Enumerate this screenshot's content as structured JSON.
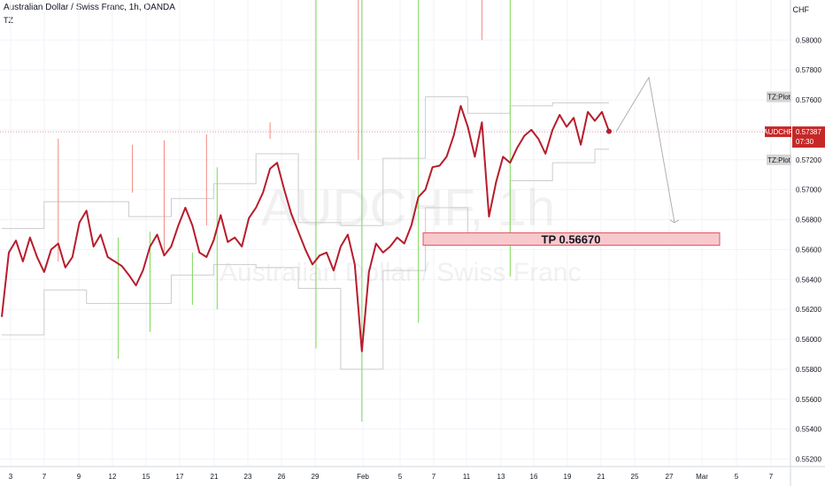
{
  "header": {
    "title": "Australian Dollar / Swiss Franc, 1h, OANDA",
    "indicator": "TZ",
    "currency": "CHF"
  },
  "watermark": {
    "symbol": "AUDCHF, 1h",
    "name": "Australian Dollar / Swiss Franc"
  },
  "price_tag": {
    "symbol": "AUDCHF",
    "price": "0.57387",
    "countdown": "07:30"
  },
  "plot_tags": [
    "TZ:Plot",
    "TZ:Plot"
  ],
  "annotation": {
    "label": "TP 0.56670"
  },
  "colors": {
    "price_line": "#b71c2c",
    "tp_fill": "#f8c8cc",
    "tp_border": "#e05560",
    "spike_up": "#f28b82",
    "spike_down": "#7ed957",
    "channel": "#cccccc",
    "projection": "#b0b0b0",
    "tag_bg": "#c62828",
    "plot_tag_bg": "#d5d5d5"
  },
  "chart_data": {
    "type": "line",
    "series": [
      {
        "name": "AUDCHF",
        "x": [
          0,
          2,
          4,
          6,
          8,
          10,
          12,
          14,
          16,
          18,
          20,
          22,
          24,
          26,
          28,
          30,
          32,
          34,
          36,
          38,
          40,
          42,
          44,
          46,
          48,
          50,
          52,
          54,
          56,
          58,
          60,
          62,
          64,
          66,
          68,
          70,
          72,
          74,
          76,
          78,
          80,
          82,
          84,
          86,
          88,
          90,
          92,
          94,
          96,
          98,
          100,
          102,
          104,
          106,
          108,
          110,
          112,
          114,
          116,
          118,
          120,
          122,
          124,
          126,
          128,
          130,
          132,
          134,
          136,
          138,
          140,
          142,
          144,
          146,
          148,
          150,
          152,
          154,
          156,
          158,
          160,
          162,
          164,
          166,
          168,
          170,
          172
        ],
        "y": [
          0.5615,
          0.5658,
          0.5666,
          0.5652,
          0.5668,
          0.5655,
          0.5645,
          0.566,
          0.5664,
          0.5648,
          0.5655,
          0.5678,
          0.5686,
          0.5662,
          0.567,
          0.5655,
          0.5652,
          0.5649,
          0.5643,
          0.5636,
          0.5646,
          0.5662,
          0.567,
          0.5656,
          0.5662,
          0.5676,
          0.5688,
          0.5676,
          0.5658,
          0.5655,
          0.5666,
          0.5683,
          0.5665,
          0.5668,
          0.5662,
          0.5681,
          0.5688,
          0.5698,
          0.5714,
          0.5718,
          0.57,
          0.5684,
          0.5672,
          0.566,
          0.565,
          0.5656,
          0.5658,
          0.5646,
          0.5662,
          0.567,
          0.565,
          0.5592,
          0.5645,
          0.5664,
          0.5658,
          0.5662,
          0.5668,
          0.5664,
          0.5676,
          0.5695,
          0.57,
          0.5715,
          0.5716,
          0.5722,
          0.5736,
          0.5756,
          0.5742,
          0.5722,
          0.5745,
          0.5682,
          0.5705,
          0.5722,
          0.5718,
          0.5728,
          0.5736,
          0.574,
          0.5734,
          0.5724,
          0.574,
          0.575,
          0.5742,
          0.5748,
          0.573,
          0.5752,
          0.5746,
          0.5752,
          0.5739
        ]
      }
    ],
    "x_tick_labels": [
      "3",
      "7",
      "9",
      "12",
      "15",
      "17",
      "21",
      "23",
      "26",
      "29",
      "Feb",
      "5",
      "7",
      "11",
      "13",
      "16",
      "19",
      "21",
      "25",
      "27",
      "Mar",
      "5",
      "7"
    ],
    "y_tick_labels": [
      "0.55200",
      "0.55400",
      "0.55600",
      "0.55800",
      "0.56000",
      "0.56200",
      "0.56400",
      "0.56600",
      "0.56800",
      "0.57000",
      "0.57200",
      "0.57400",
      "0.57600",
      "0.57800",
      "0.58000"
    ],
    "ylim": [
      0.5515,
      0.5822
    ],
    "projection": {
      "y": [
        0.57387,
        0.5775,
        0.5678
      ]
    },
    "tp_level": 0.5667
  }
}
